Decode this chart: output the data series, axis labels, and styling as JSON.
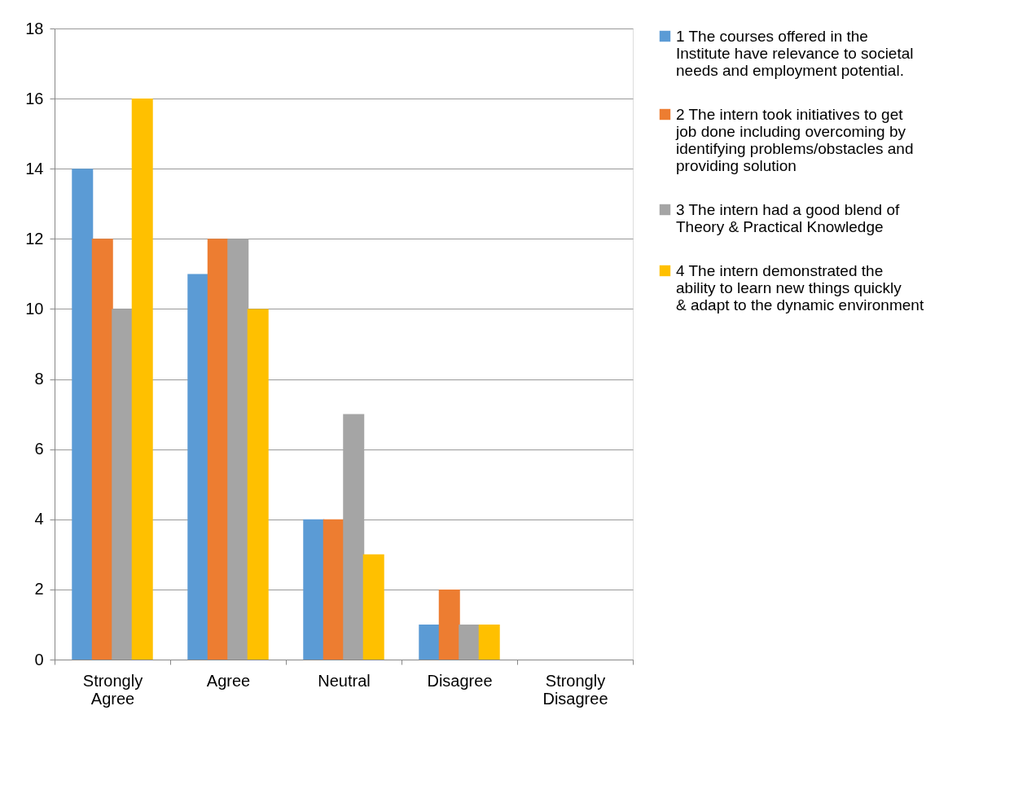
{
  "chart_data": {
    "type": "bar",
    "categories": [
      "Strongly Agree",
      "Agree",
      "Neutral",
      "Disagree",
      "Strongly Disagree"
    ],
    "series": [
      {
        "name": "1 The courses offered in the Institute have relevance to societal needs and employment potential.",
        "color": "#5b9bd5",
        "values": [
          14,
          11,
          4,
          1,
          0
        ]
      },
      {
        "name": "2 The intern took initiatives to get job done including overcoming by identifying problems/obstacles and providing solution",
        "color": "#ed7d31",
        "values": [
          12,
          12,
          4,
          2,
          0
        ]
      },
      {
        "name": "3 The intern had a good blend of Theory & Practical Knowledge",
        "color": "#a5a5a5",
        "values": [
          10,
          12,
          7,
          1,
          0
        ]
      },
      {
        "name": "4 The intern demonstrated the ability to learn new things quickly & adapt to the dynamic environment",
        "color": "#ffc000",
        "values": [
          16,
          10,
          3,
          1,
          0
        ]
      }
    ],
    "ylim": [
      0,
      18
    ],
    "yticks": [
      0,
      2,
      4,
      6,
      8,
      10,
      12,
      14,
      16,
      18
    ],
    "grid": "y",
    "legend": "right"
  }
}
